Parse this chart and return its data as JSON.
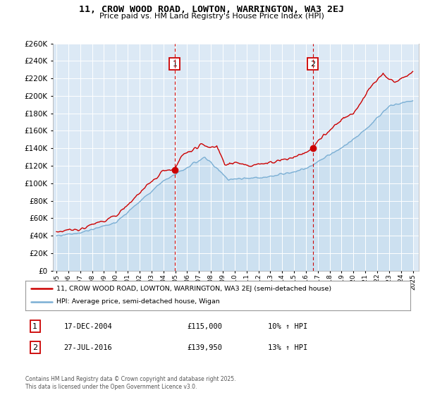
{
  "title": "11, CROW WOOD ROAD, LOWTON, WARRINGTON, WA3 2EJ",
  "subtitle": "Price paid vs. HM Land Registry's House Price Index (HPI)",
  "legend_line1": "11, CROW WOOD ROAD, LOWTON, WARRINGTON, WA3 2EJ (semi-detached house)",
  "legend_line2": "HPI: Average price, semi-detached house, Wigan",
  "annotation1_label": "1",
  "annotation1_date": "17-DEC-2004",
  "annotation1_price": "£115,000",
  "annotation1_hpi": "10% ↑ HPI",
  "annotation2_label": "2",
  "annotation2_date": "27-JUL-2016",
  "annotation2_price": "£139,950",
  "annotation2_hpi": "13% ↑ HPI",
  "footnote": "Contains HM Land Registry data © Crown copyright and database right 2025.\nThis data is licensed under the Open Government Licence v3.0.",
  "sale1_year": 2004.96,
  "sale1_value": 115000,
  "sale2_year": 2016.57,
  "sale2_value": 139950,
  "red_color": "#cc0000",
  "blue_color": "#7bafd4",
  "blue_fill": "#cce0f0",
  "background_plot": "#dce9f5",
  "ylim": [
    0,
    260000
  ],
  "xlim_start": 1995,
  "xlim_end": 2025
}
